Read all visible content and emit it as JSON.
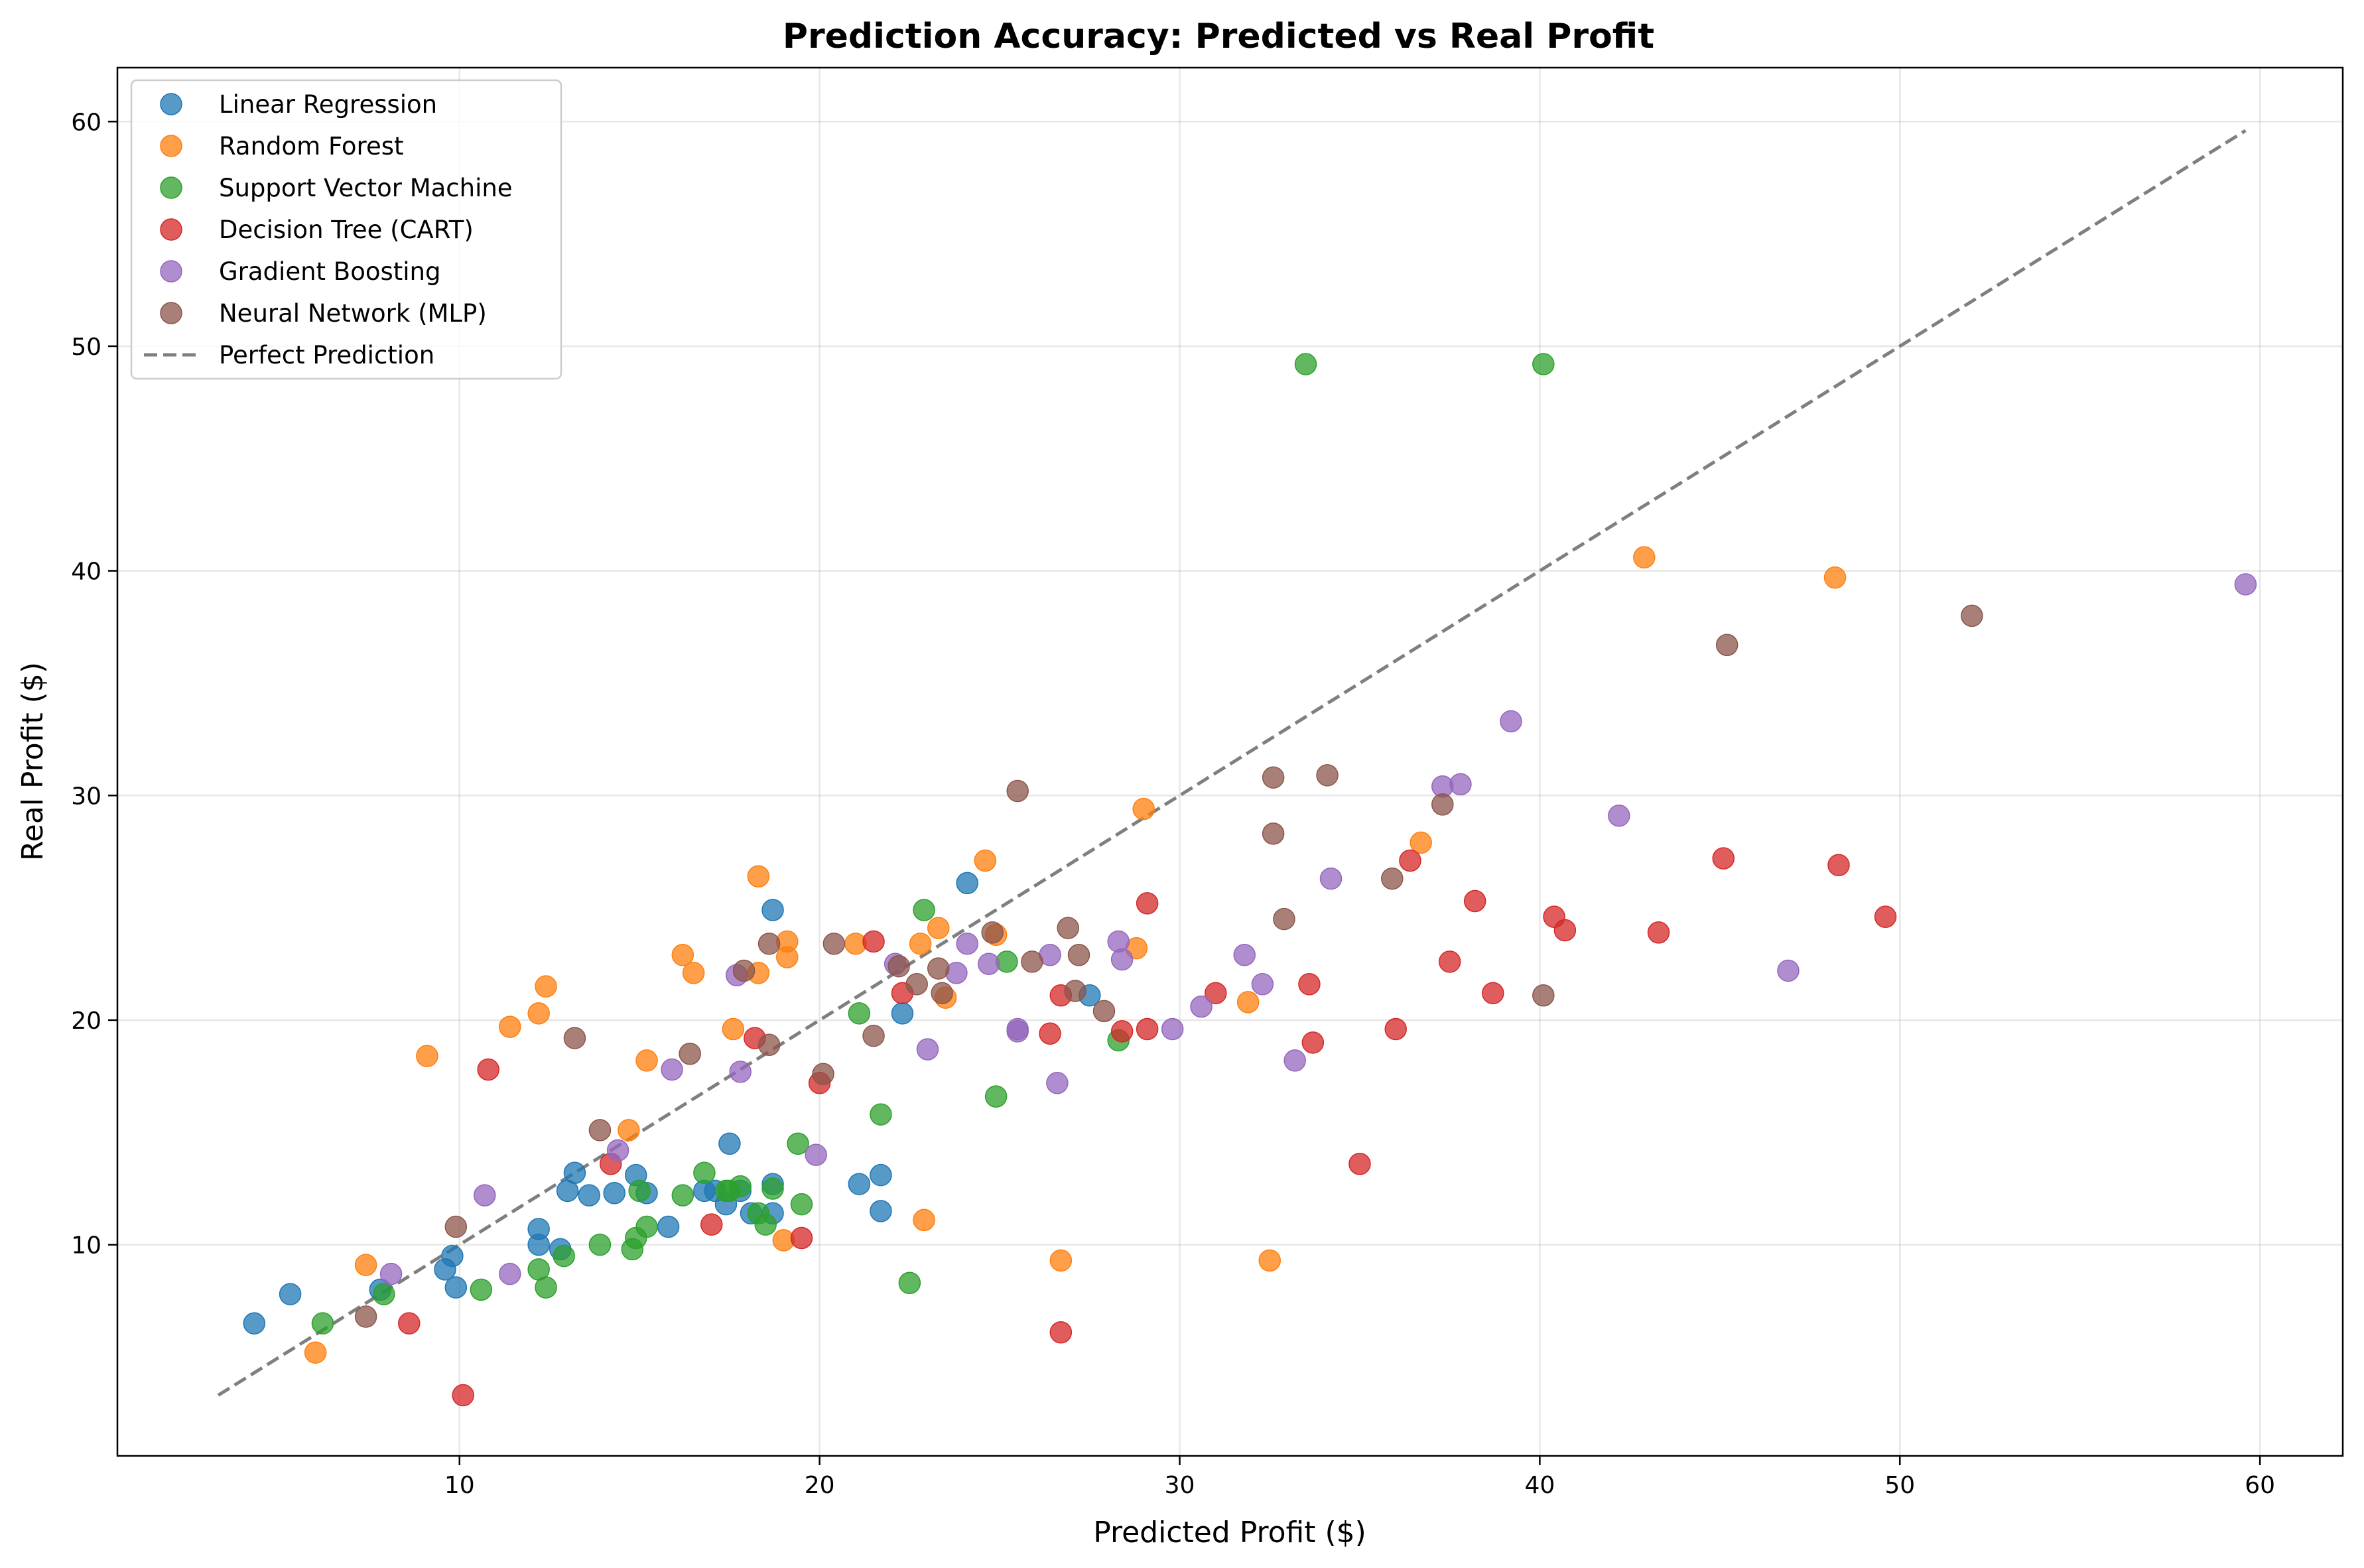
{
  "chart_data": {
    "type": "scatter",
    "title": "Prediction Accuracy: Predicted vs Real Profit",
    "xlabel": "Predicted Profit ($)",
    "ylabel": "Real Profit ($)",
    "xlim": [
      0.5,
      62.3
    ],
    "ylim": [
      0.6,
      62.4
    ],
    "xticks": [
      10,
      20,
      30,
      40,
      50,
      60
    ],
    "yticks": [
      10,
      20,
      30,
      40,
      50,
      60
    ],
    "grid": true,
    "legend_position": "top-left",
    "reference_line": {
      "name": "Perfect Prediction",
      "x": [
        3.3,
        59.6
      ],
      "y": [
        3.3,
        59.6
      ],
      "color": "#7f7f7f"
    },
    "series": [
      {
        "name": "Linear Regression",
        "color": "#1f77b4",
        "points": [
          [
            4.3,
            6.5
          ],
          [
            5.3,
            7.8
          ],
          [
            7.8,
            8.0
          ],
          [
            9.6,
            8.9
          ],
          [
            9.8,
            9.5
          ],
          [
            9.9,
            8.1
          ],
          [
            12.2,
            10.7
          ],
          [
            12.2,
            10.0
          ],
          [
            12.8,
            9.8
          ],
          [
            13.0,
            12.4
          ],
          [
            13.2,
            13.2
          ],
          [
            13.6,
            12.2
          ],
          [
            14.3,
            12.3
          ],
          [
            14.9,
            13.1
          ],
          [
            15.2,
            12.3
          ],
          [
            15.8,
            10.8
          ],
          [
            16.8,
            12.4
          ],
          [
            17.1,
            12.4
          ],
          [
            17.4,
            11.8
          ],
          [
            17.5,
            14.5
          ],
          [
            17.8,
            12.4
          ],
          [
            18.1,
            11.4
          ],
          [
            18.7,
            11.4
          ],
          [
            18.7,
            12.7
          ],
          [
            18.7,
            24.9
          ],
          [
            21.1,
            12.7
          ],
          [
            21.7,
            11.5
          ],
          [
            21.7,
            13.1
          ],
          [
            22.3,
            20.3
          ],
          [
            24.1,
            26.1
          ],
          [
            27.5,
            21.1
          ]
        ]
      },
      {
        "name": "Random Forest",
        "color": "#ff7f0e",
        "points": [
          [
            6.0,
            5.2
          ],
          [
            7.4,
            9.1
          ],
          [
            9.1,
            18.4
          ],
          [
            11.4,
            19.7
          ],
          [
            12.2,
            20.3
          ],
          [
            12.4,
            21.5
          ],
          [
            14.7,
            15.1
          ],
          [
            15.2,
            18.2
          ],
          [
            16.2,
            22.9
          ],
          [
            16.5,
            22.1
          ],
          [
            17.6,
            19.6
          ],
          [
            18.3,
            22.1
          ],
          [
            18.3,
            26.4
          ],
          [
            19.0,
            10.2
          ],
          [
            19.1,
            23.5
          ],
          [
            19.1,
            22.8
          ],
          [
            21.0,
            23.4
          ],
          [
            22.8,
            23.4
          ],
          [
            22.9,
            11.1
          ],
          [
            23.3,
            24.1
          ],
          [
            23.5,
            21.0
          ],
          [
            24.6,
            27.1
          ],
          [
            24.9,
            23.8
          ],
          [
            26.7,
            9.3
          ],
          [
            28.8,
            23.2
          ],
          [
            29.0,
            29.4
          ],
          [
            31.9,
            20.8
          ],
          [
            32.5,
            9.3
          ],
          [
            36.7,
            27.9
          ],
          [
            42.9,
            40.6
          ],
          [
            48.2,
            39.7
          ]
        ]
      },
      {
        "name": "Support Vector Machine",
        "color": "#2ca02c",
        "points": [
          [
            6.2,
            6.5
          ],
          [
            7.9,
            7.8
          ],
          [
            10.6,
            8.0
          ],
          [
            12.2,
            8.9
          ],
          [
            12.4,
            8.1
          ],
          [
            12.9,
            9.5
          ],
          [
            13.9,
            10.0
          ],
          [
            14.8,
            9.8
          ],
          [
            14.9,
            10.3
          ],
          [
            15.0,
            12.4
          ],
          [
            15.2,
            10.8
          ],
          [
            16.2,
            12.2
          ],
          [
            16.8,
            13.2
          ],
          [
            17.4,
            12.4
          ],
          [
            17.5,
            12.4
          ],
          [
            17.8,
            12.6
          ],
          [
            18.3,
            11.4
          ],
          [
            18.5,
            10.9
          ],
          [
            18.7,
            12.5
          ],
          [
            19.4,
            14.5
          ],
          [
            19.5,
            11.8
          ],
          [
            21.1,
            20.3
          ],
          [
            21.7,
            15.8
          ],
          [
            22.5,
            8.3
          ],
          [
            22.9,
            24.9
          ],
          [
            24.9,
            16.6
          ],
          [
            25.2,
            22.6
          ],
          [
            28.3,
            19.1
          ],
          [
            33.5,
            49.2
          ],
          [
            40.1,
            49.2
          ]
        ]
      },
      {
        "name": "Decision Tree (CART)",
        "color": "#d62728",
        "points": [
          [
            8.6,
            6.5
          ],
          [
            10.1,
            3.3
          ],
          [
            10.8,
            17.8
          ],
          [
            14.2,
            13.6
          ],
          [
            17.0,
            10.9
          ],
          [
            18.2,
            19.2
          ],
          [
            19.5,
            10.3
          ],
          [
            20.0,
            17.2
          ],
          [
            21.5,
            23.5
          ],
          [
            22.3,
            21.2
          ],
          [
            26.4,
            19.4
          ],
          [
            26.7,
            21.1
          ],
          [
            26.7,
            6.1
          ],
          [
            28.4,
            19.5
          ],
          [
            29.1,
            19.6
          ],
          [
            29.1,
            25.2
          ],
          [
            31.0,
            21.2
          ],
          [
            33.6,
            21.6
          ],
          [
            33.7,
            19.0
          ],
          [
            35.0,
            13.6
          ],
          [
            36.0,
            19.6
          ],
          [
            36.4,
            27.1
          ],
          [
            37.5,
            22.6
          ],
          [
            38.2,
            25.3
          ],
          [
            38.7,
            21.2
          ],
          [
            40.4,
            24.6
          ],
          [
            40.7,
            24.0
          ],
          [
            43.3,
            23.9
          ],
          [
            45.1,
            27.2
          ],
          [
            48.3,
            26.9
          ],
          [
            49.6,
            24.6
          ]
        ]
      },
      {
        "name": "Gradient Boosting",
        "color": "#9467bd",
        "points": [
          [
            8.1,
            8.7
          ],
          [
            10.7,
            12.2
          ],
          [
            11.4,
            8.7
          ],
          [
            14.4,
            14.2
          ],
          [
            15.9,
            17.8
          ],
          [
            17.7,
            22.0
          ],
          [
            17.8,
            17.7
          ],
          [
            19.9,
            14.0
          ],
          [
            22.1,
            22.5
          ],
          [
            23.0,
            18.7
          ],
          [
            23.8,
            22.1
          ],
          [
            24.1,
            23.4
          ],
          [
            24.7,
            22.5
          ],
          [
            25.5,
            19.6
          ],
          [
            25.5,
            19.5
          ],
          [
            26.4,
            22.9
          ],
          [
            26.6,
            17.2
          ],
          [
            28.3,
            23.5
          ],
          [
            28.4,
            22.7
          ],
          [
            29.8,
            19.6
          ],
          [
            30.6,
            20.6
          ],
          [
            31.8,
            22.9
          ],
          [
            32.3,
            21.6
          ],
          [
            33.2,
            18.2
          ],
          [
            34.2,
            26.3
          ],
          [
            37.3,
            30.4
          ],
          [
            37.8,
            30.5
          ],
          [
            39.2,
            33.3
          ],
          [
            42.2,
            29.1
          ],
          [
            46.9,
            22.2
          ],
          [
            59.6,
            39.4
          ]
        ]
      },
      {
        "name": "Neural Network (MLP)",
        "color": "#8c564b",
        "points": [
          [
            7.4,
            6.8
          ],
          [
            9.9,
            10.8
          ],
          [
            13.2,
            19.2
          ],
          [
            13.9,
            15.1
          ],
          [
            16.4,
            18.5
          ],
          [
            17.9,
            22.2
          ],
          [
            18.6,
            23.4
          ],
          [
            18.6,
            18.9
          ],
          [
            20.1,
            17.6
          ],
          [
            20.4,
            23.4
          ],
          [
            21.5,
            19.3
          ],
          [
            22.2,
            22.4
          ],
          [
            22.7,
            21.6
          ],
          [
            23.3,
            22.3
          ],
          [
            23.4,
            21.2
          ],
          [
            24.8,
            23.9
          ],
          [
            25.5,
            30.2
          ],
          [
            25.9,
            22.6
          ],
          [
            26.9,
            24.1
          ],
          [
            27.1,
            21.3
          ],
          [
            27.2,
            22.9
          ],
          [
            27.9,
            20.4
          ],
          [
            32.6,
            30.8
          ],
          [
            32.6,
            28.3
          ],
          [
            32.9,
            24.5
          ],
          [
            34.1,
            30.9
          ],
          [
            35.9,
            26.3
          ],
          [
            37.3,
            29.6
          ],
          [
            40.1,
            21.1
          ],
          [
            45.2,
            36.7
          ],
          [
            52.0,
            38.0
          ]
        ]
      }
    ]
  }
}
